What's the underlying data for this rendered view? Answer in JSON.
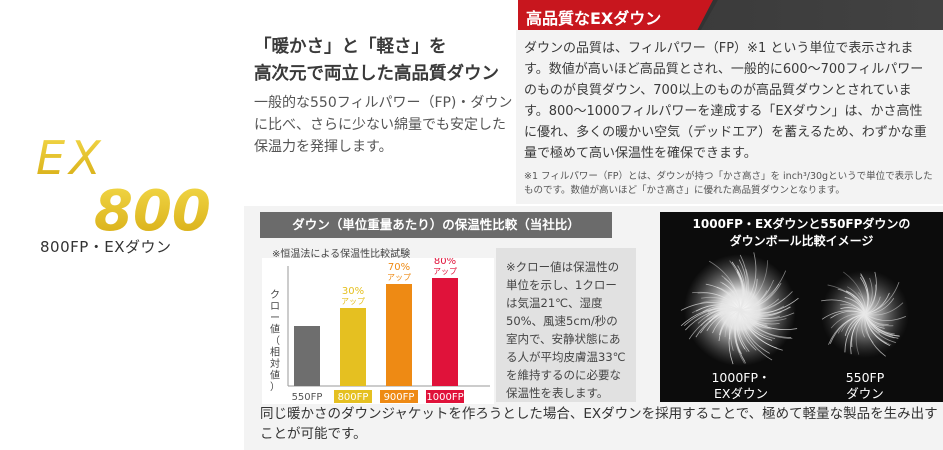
{
  "logo": {
    "line1": "EX",
    "line2": "800",
    "color": "#e5c021"
  },
  "caption": "800FP・EXダウン",
  "headline": {
    "line1": "「暖かさ」と「軽さ」を",
    "line2": "高次元で両立した高品質ダウン"
  },
  "headline_body": "一般的な550フィルパワー（FP)・ダウンに比べ、さらに少ない綿量でも安定した保温力を発揮します。",
  "banner": {
    "title": "高品質なEXダウン",
    "accent": "#c8161e"
  },
  "quality_text": "ダウンの品質は、フィルパワー（FP）※1 という単位で表示されます。数値が高いほど高品質とされ、一般的に600～700フィルパワーのものが良質ダウン、700以上のものが高品質ダウンとされています。800～1000フィルパワーを達成する「EXダウン」は、かさ高性に優れ、多くの暖かい空気（デッドエア）を蓄えるため、わずかな重量で極めて高い保温性を確保できます。",
  "footnote": "※1 フィルパワー（FP）とは、ダウンが持つ「かさ高さ」を inch³/30gというで単位で表示したものです。数値が高いほど「かさ高さ」に優れた高品質ダウンとなります。",
  "chart_header": "ダウン（単位重量あたり）の保温性比較（当社比）",
  "chart_note": "※恒温法による保温性比較試験",
  "chart_data": {
    "type": "bar",
    "title": "ダウン（単位重量あたり）の保温性比較（当社比）",
    "ylabel": "クロー値（相対値）",
    "categories": [
      "550FP",
      "800FP",
      "900FP",
      "1000FP"
    ],
    "values": [
      100,
      130,
      170,
      180
    ],
    "annotations": [
      "",
      "30%\nアップ",
      "70%\nアップ",
      "80%\nアップ"
    ],
    "colors": [
      "#6e6e6e",
      "#e5c021",
      "#ee8a14",
      "#e0123a"
    ],
    "ylim": [
      0,
      200
    ],
    "grid": false
  },
  "explanation": "※クロー値は保温性の単位を示し、1クローは気温21℃、湿度50%、風速5cm/秒の室内で、安静状態にある人が平均皮膚温33℃を維持するのに必要な保温性を表します。",
  "compare": {
    "title_line1": "1000FP・EXダウンと550FPダウンの",
    "title_line2": "ダウンボール比較イメージ",
    "left_label_1": "1000FP・",
    "left_label_2": "EXダウン",
    "right_label_1": "550FP",
    "right_label_2": "ダウン"
  },
  "bottom_text": "同じ暖かさのダウンジャケットを作ろうとした場合、EXダウンを採用することで、極めて軽量な製品を生み出すことが可能です。"
}
